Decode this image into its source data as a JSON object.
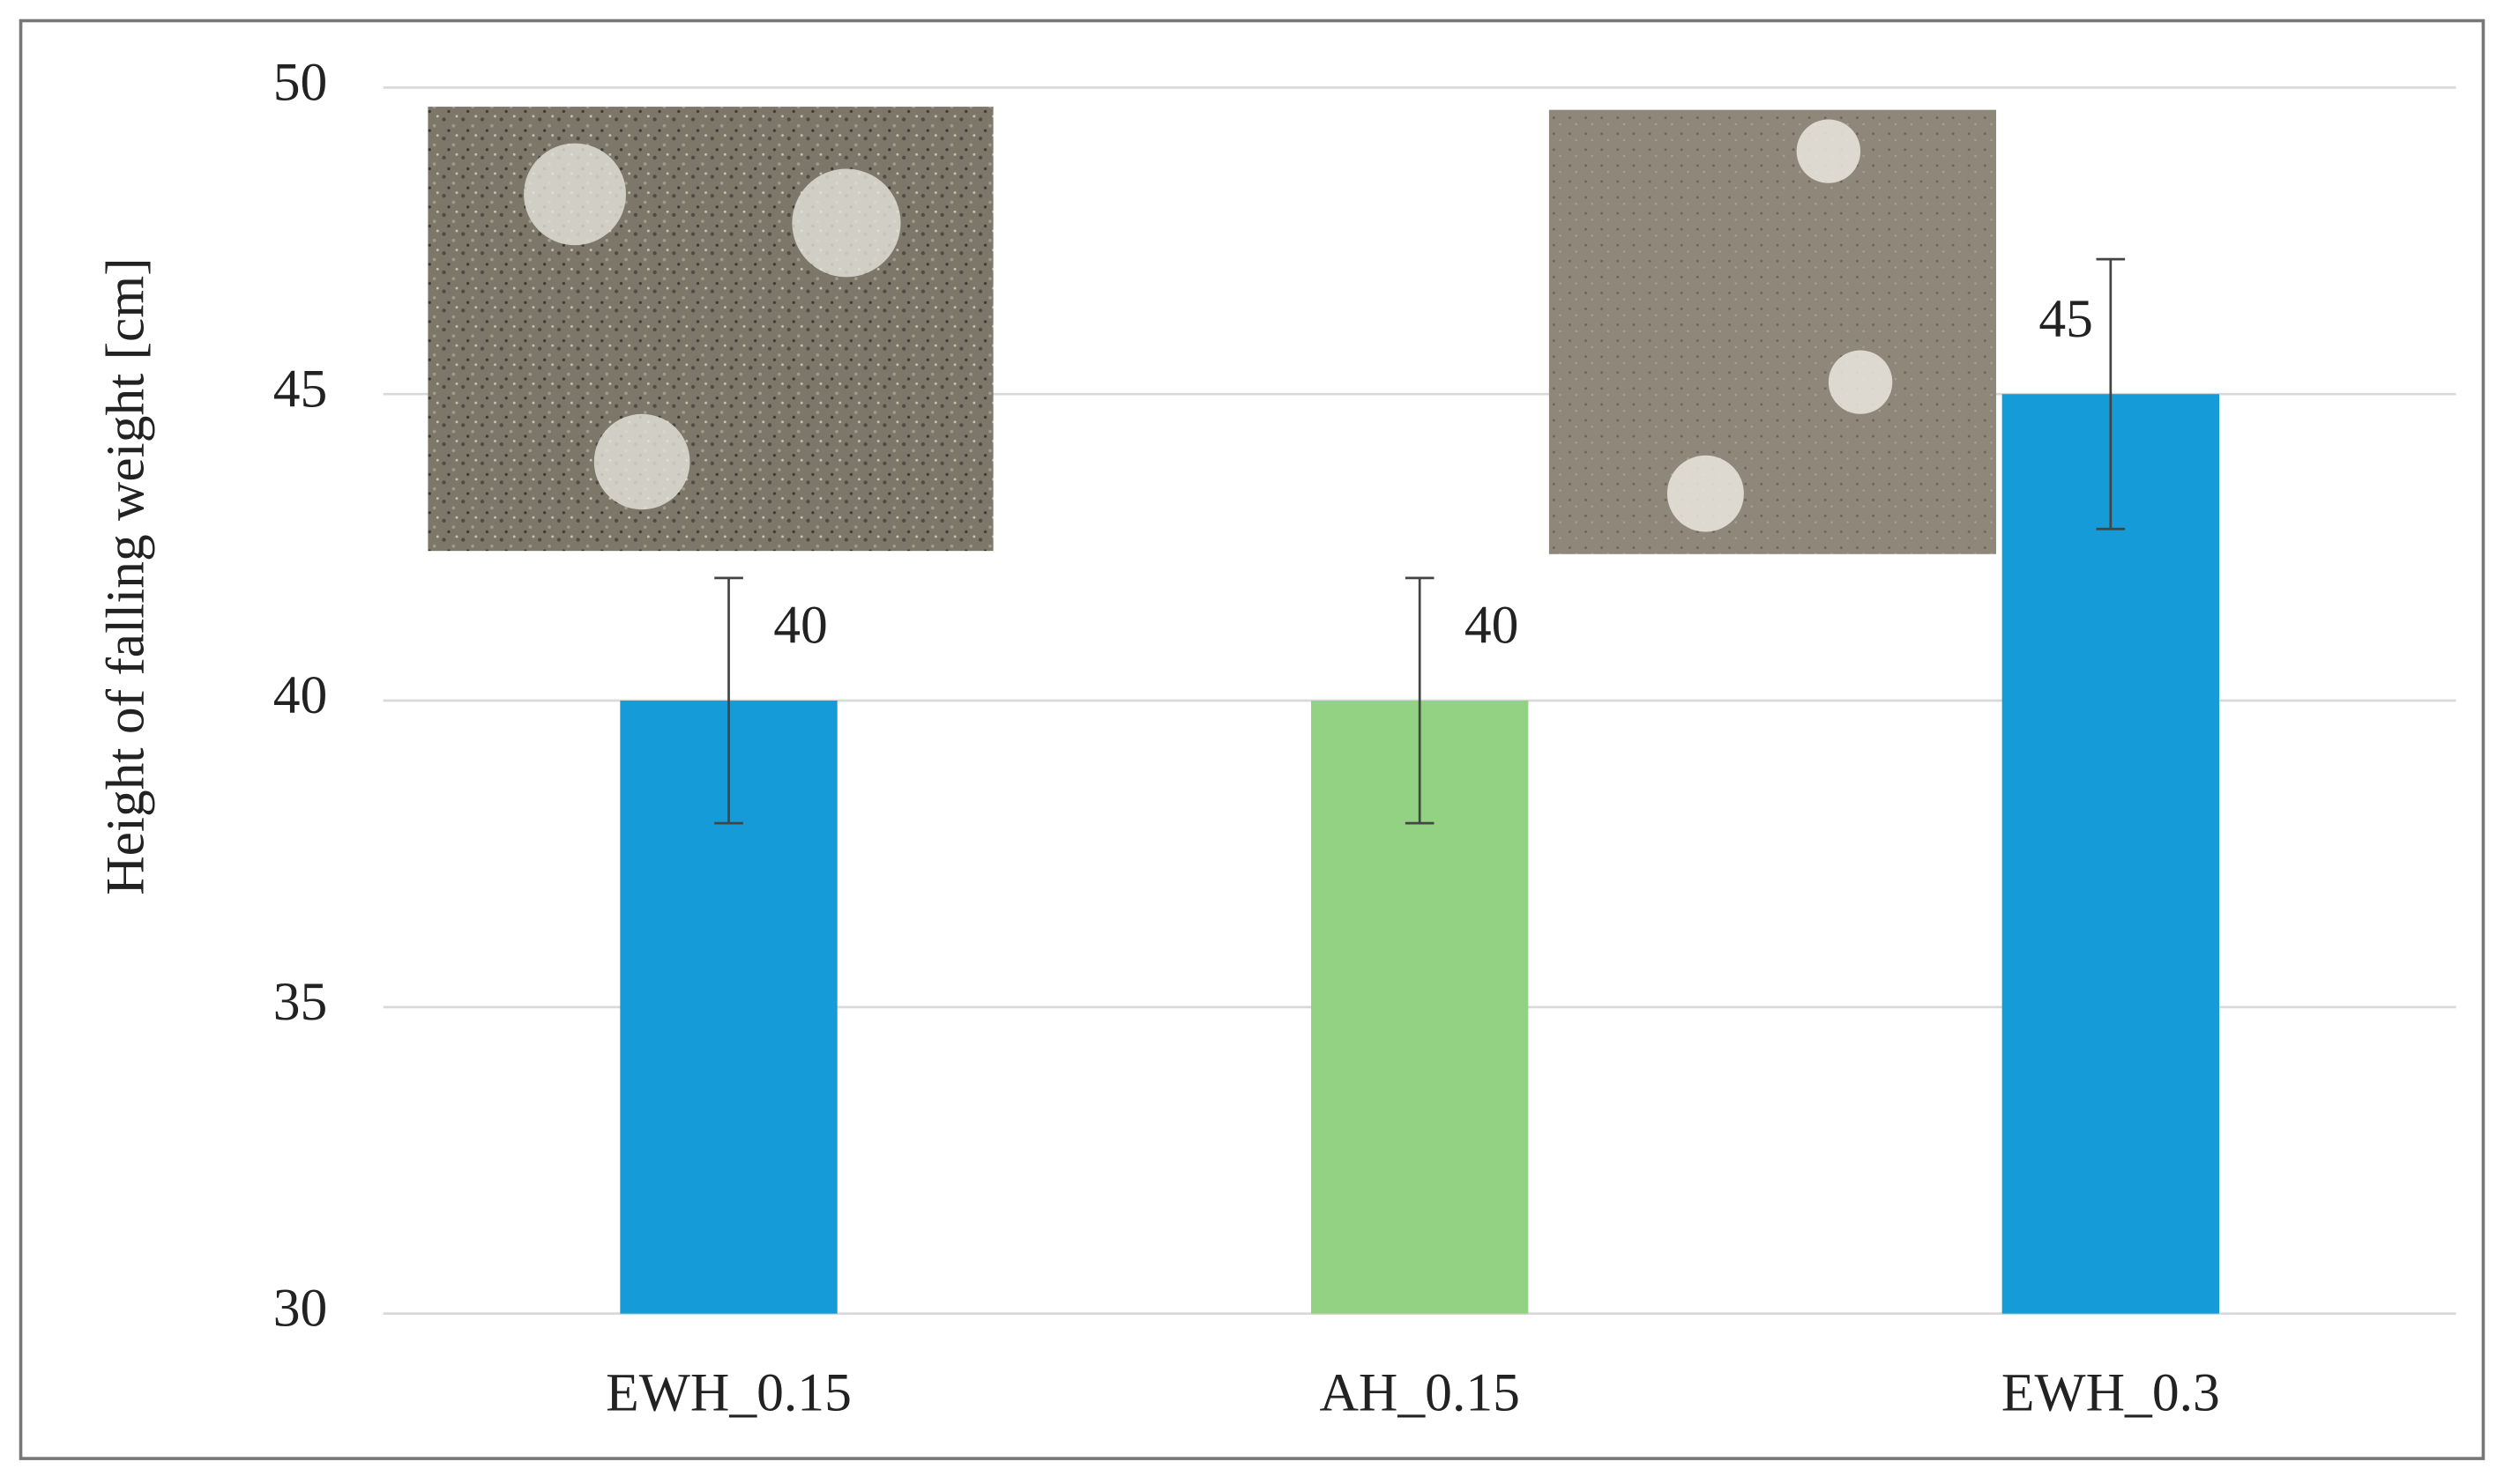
{
  "chart_data": {
    "type": "bar",
    "y_label": "Height of falling weight [cm]",
    "categories": [
      "EWH_0.15",
      "AH_0.15",
      "EWH_0.3"
    ],
    "values": [
      40,
      40,
      45
    ],
    "errors": [
      2,
      2,
      2.2
    ],
    "colors": [
      "#159bd7",
      "#92d282",
      "#159bd7"
    ],
    "ylim": [
      30,
      50
    ],
    "yticks": [
      30,
      35,
      40,
      45,
      50
    ],
    "grid": true
  }
}
